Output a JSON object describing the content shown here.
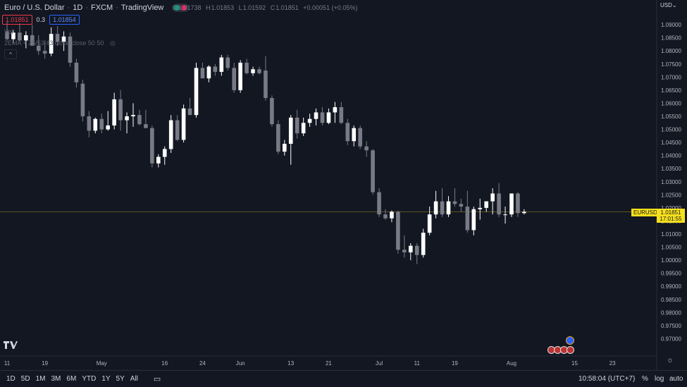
{
  "header": {
    "symbol_name": "Euro / U.S. Dollar",
    "timeframe": "1D",
    "exchange": "FXCM",
    "source": "TradingView"
  },
  "ohlc": {
    "o_label": "O",
    "o": "1.01738",
    "h_label": "H",
    "h": "1.01853",
    "l_label": "L",
    "l": "1.01592",
    "c_label": "C",
    "c": "1.01851",
    "change": "+0.00051 (+0.05%)"
  },
  "quote": {
    "sell": "1.01851",
    "spread": "0.3",
    "buy": "1.01854"
  },
  "indicators": {
    "volume": "Vol",
    "ema": "2EMA + 25/53 43 close close 50 50"
  },
  "currency": "USD",
  "price_tag": {
    "symbol": "EURUSD",
    "price": "1.01851",
    "countdown": "17:01:55"
  },
  "toolbar": {
    "timeframes": [
      "1D",
      "5D",
      "1M",
      "3M",
      "6M",
      "YTD",
      "1Y",
      "5Y",
      "All"
    ],
    "clock": "10:58:04 (UTC+7)",
    "percent": "%",
    "log": "log",
    "auto": "auto"
  },
  "colors": {
    "background": "#131722",
    "up": "#ffffff",
    "down": "#787b86",
    "price_line": "#f7e01c"
  },
  "chart_data": {
    "type": "candlestick",
    "ylim": [
      0.965,
      1.093
    ],
    "y_ticks": [
      1.09,
      1.085,
      1.08,
      1.075,
      1.07,
      1.065,
      1.06,
      1.055,
      1.05,
      1.045,
      1.04,
      1.035,
      1.03,
      1.025,
      1.02,
      1.015,
      1.01,
      1.005,
      1.0,
      0.995,
      0.99,
      0.985,
      0.98,
      0.975,
      0.97
    ],
    "y_tick_labels": [
      "1.09000",
      "1.08500",
      "1.08000",
      "1.07500",
      "1.07000",
      "1.06500",
      "1.06000",
      "1.05500",
      "1.05000",
      "1.04500",
      "1.04000",
      "1.03500",
      "1.03000",
      "1.02500",
      "1.02000",
      "1.01500",
      "1.01000",
      "1.00500",
      "1.00000",
      "0.99500",
      "0.99000",
      "0.98500",
      "0.98000",
      "0.97500",
      "0.97000"
    ],
    "x_tick_labels": [
      {
        "label": "11",
        "bar": 0
      },
      {
        "label": "19",
        "bar": 6
      },
      {
        "label": "May",
        "bar": 15
      },
      {
        "label": "16",
        "bar": 25
      },
      {
        "label": "24",
        "bar": 31
      },
      {
        "label": "Jun",
        "bar": 37
      },
      {
        "label": "13",
        "bar": 45
      },
      {
        "label": "21",
        "bar": 51
      },
      {
        "label": "Jul",
        "bar": 59
      },
      {
        "label": "11",
        "bar": 65
      },
      {
        "label": "19",
        "bar": 71
      },
      {
        "label": "Aug",
        "bar": 80
      },
      {
        "label": "15",
        "bar": 90
      },
      {
        "label": "23",
        "bar": 96
      }
    ],
    "candles": [
      {
        "o": 1.0875,
        "h": 1.091,
        "l": 1.084,
        "c": 1.0845
      },
      {
        "o": 1.0845,
        "h": 1.088,
        "l": 1.083,
        "c": 1.087
      },
      {
        "o": 1.087,
        "h": 1.0905,
        "l": 1.0835,
        "c": 1.084
      },
      {
        "o": 1.084,
        "h": 1.0875,
        "l": 1.081,
        "c": 1.086
      },
      {
        "o": 1.086,
        "h": 1.09,
        "l": 1.0825,
        "c": 1.082
      },
      {
        "o": 1.082,
        "h": 1.086,
        "l": 1.0785,
        "c": 1.08
      },
      {
        "o": 1.08,
        "h": 1.084,
        "l": 1.077,
        "c": 1.079
      },
      {
        "o": 1.079,
        "h": 1.089,
        "l": 1.078,
        "c": 1.0865
      },
      {
        "o": 1.0865,
        "h": 1.0895,
        "l": 1.082,
        "c": 1.0835
      },
      {
        "o": 1.0835,
        "h": 1.0875,
        "l": 1.08,
        "c": 1.0855
      },
      {
        "o": 1.0855,
        "h": 1.087,
        "l": 1.074,
        "c": 1.0755
      },
      {
        "o": 1.0755,
        "h": 1.077,
        "l": 1.066,
        "c": 1.068
      },
      {
        "o": 1.0675,
        "h": 1.069,
        "l": 1.053,
        "c": 1.055
      },
      {
        "o": 1.055,
        "h": 1.057,
        "l": 1.047,
        "c": 1.0495
      },
      {
        "o": 1.0495,
        "h": 1.0545,
        "l": 1.0485,
        "c": 1.054
      },
      {
        "o": 1.054,
        "h": 1.056,
        "l": 1.0485,
        "c": 1.05
      },
      {
        "o": 1.05,
        "h": 1.057,
        "l": 1.0495,
        "c": 1.0515
      },
      {
        "o": 1.0515,
        "h": 1.064,
        "l": 1.05,
        "c": 1.0615
      },
      {
        "o": 1.0615,
        "h": 1.065,
        "l": 1.0495,
        "c": 1.0535
      },
      {
        "o": 1.0535,
        "h": 1.0565,
        "l": 1.0485,
        "c": 1.055
      },
      {
        "o": 1.055,
        "h": 1.06,
        "l": 1.051,
        "c": 1.0555
      },
      {
        "o": 1.0555,
        "h": 1.0575,
        "l": 1.0515,
        "c": 1.052
      },
      {
        "o": 1.052,
        "h": 1.0575,
        "l": 1.0505,
        "c": 1.0505
      },
      {
        "o": 1.0505,
        "h": 1.0515,
        "l": 1.0355,
        "c": 1.037
      },
      {
        "o": 1.037,
        "h": 1.0405,
        "l": 1.0355,
        "c": 1.0395
      },
      {
        "o": 1.0395,
        "h": 1.0435,
        "l": 1.0365,
        "c": 1.0425
      },
      {
        "o": 1.0425,
        "h": 1.0555,
        "l": 1.041,
        "c": 1.0535
      },
      {
        "o": 1.0535,
        "h": 1.0555,
        "l": 1.0455,
        "c": 1.046
      },
      {
        "o": 1.046,
        "h": 1.0595,
        "l": 1.045,
        "c": 1.058
      },
      {
        "o": 1.058,
        "h": 1.062,
        "l": 1.0555,
        "c": 1.0555
      },
      {
        "o": 1.0555,
        "h": 1.0755,
        "l": 1.0545,
        "c": 1.0735
      },
      {
        "o": 1.0735,
        "h": 1.0755,
        "l": 1.0695,
        "c": 1.0695
      },
      {
        "o": 1.0695,
        "h": 1.0745,
        "l": 1.068,
        "c": 1.074
      },
      {
        "o": 1.074,
        "h": 1.075,
        "l": 1.0705,
        "c": 1.072
      },
      {
        "o": 1.072,
        "h": 1.0785,
        "l": 1.0705,
        "c": 1.0775
      },
      {
        "o": 1.0775,
        "h": 1.0785,
        "l": 1.0725,
        "c": 1.0735
      },
      {
        "o": 1.0735,
        "h": 1.0755,
        "l": 1.064,
        "c": 1.065
      },
      {
        "o": 1.065,
        "h": 1.0765,
        "l": 1.064,
        "c": 1.0755
      },
      {
        "o": 1.0755,
        "h": 1.077,
        "l": 1.071,
        "c": 1.0715
      },
      {
        "o": 1.0715,
        "h": 1.074,
        "l": 1.0705,
        "c": 1.073
      },
      {
        "o": 1.073,
        "h": 1.074,
        "l": 1.071,
        "c": 1.0715
      },
      {
        "o": 1.0725,
        "h": 1.078,
        "l": 1.061,
        "c": 1.062
      },
      {
        "o": 1.062,
        "h": 1.063,
        "l": 1.051,
        "c": 1.052
      },
      {
        "o": 1.052,
        "h": 1.0535,
        "l": 1.0405,
        "c": 1.0415
      },
      {
        "o": 1.0415,
        "h": 1.046,
        "l": 1.04,
        "c": 1.0445
      },
      {
        "o": 1.0445,
        "h": 1.0555,
        "l": 1.0365,
        "c": 1.0545
      },
      {
        "o": 1.0545,
        "h": 1.0575,
        "l": 1.0465,
        "c": 1.0485
      },
      {
        "o": 1.0485,
        "h": 1.0545,
        "l": 1.0475,
        "c": 1.0525
      },
      {
        "o": 1.0525,
        "h": 1.056,
        "l": 1.051,
        "c": 1.054
      },
      {
        "o": 1.054,
        "h": 1.058,
        "l": 1.0515,
        "c": 1.0565
      },
      {
        "o": 1.0565,
        "h": 1.0585,
        "l": 1.0515,
        "c": 1.0525
      },
      {
        "o": 1.0525,
        "h": 1.058,
        "l": 1.052,
        "c": 1.0565
      },
      {
        "o": 1.0565,
        "h": 1.0605,
        "l": 1.0525,
        "c": 1.0585
      },
      {
        "o": 1.0585,
        "h": 1.0605,
        "l": 1.052,
        "c": 1.0525
      },
      {
        "o": 1.0525,
        "h": 1.054,
        "l": 1.044,
        "c": 1.0455
      },
      {
        "o": 1.0455,
        "h": 1.0515,
        "l": 1.0435,
        "c": 1.0505
      },
      {
        "o": 1.0505,
        "h": 1.0515,
        "l": 1.0425,
        "c": 1.0435
      },
      {
        "o": 1.0435,
        "h": 1.0455,
        "l": 1.0395,
        "c": 1.042
      },
      {
        "o": 1.042,
        "h": 1.0425,
        "l": 1.025,
        "c": 1.026
      },
      {
        "o": 1.026,
        "h": 1.0275,
        "l": 1.0165,
        "c": 1.0175
      },
      {
        "o": 1.0175,
        "h": 1.0195,
        "l": 1.0155,
        "c": 1.016
      },
      {
        "o": 1.016,
        "h": 1.019,
        "l": 1.0145,
        "c": 1.0185
      },
      {
        "o": 1.0185,
        "h": 1.019,
        "l": 1.0025,
        "c": 1.004
      },
      {
        "o": 1.004,
        "h": 1.0095,
        "l": 1.001,
        "c": 1.003
      },
      {
        "o": 1.003,
        "h": 1.0065,
        "l": 1.0,
        "c": 1.0055
      },
      {
        "o": 1.0055,
        "h": 1.0065,
        "l": 0.9985,
        "c": 1.002
      },
      {
        "o": 1.002,
        "h": 1.012,
        "l": 1.001,
        "c": 1.0105
      },
      {
        "o": 1.0105,
        "h": 1.0205,
        "l": 1.0095,
        "c": 1.0175
      },
      {
        "o": 1.0175,
        "h": 1.0265,
        "l": 1.016,
        "c": 1.0225
      },
      {
        "o": 1.0225,
        "h": 1.0275,
        "l": 1.0165,
        "c": 1.0175
      },
      {
        "o": 1.0175,
        "h": 1.0245,
        "l": 1.0165,
        "c": 1.0225
      },
      {
        "o": 1.0225,
        "h": 1.0275,
        "l": 1.0205,
        "c": 1.0215
      },
      {
        "o": 1.0215,
        "h": 1.0235,
        "l": 1.0185,
        "c": 1.0205
      },
      {
        "o": 1.0205,
        "h": 1.0265,
        "l": 1.0105,
        "c": 1.0115
      },
      {
        "o": 1.0115,
        "h": 1.0205,
        "l": 1.0095,
        "c": 1.0195
      },
      {
        "o": 1.0195,
        "h": 1.0235,
        "l": 1.0155,
        "c": 1.02
      },
      {
        "o": 1.02,
        "h": 1.0225,
        "l": 1.0185,
        "c": 1.0225
      },
      {
        "o": 1.0225,
        "h": 1.0275,
        "l": 1.0175,
        "c": 1.0255
      },
      {
        "o": 1.0255,
        "h": 1.0295,
        "l": 1.0165,
        "c": 1.0175
      },
      {
        "o": 1.0175,
        "h": 1.0205,
        "l": 1.014,
        "c": 1.0175
      },
      {
        "o": 1.0175,
        "h": 1.0255,
        "l": 1.0165,
        "c": 1.0255
      },
      {
        "o": 1.0255,
        "h": 1.026,
        "l": 1.0165,
        "c": 1.018
      },
      {
        "o": 1.018,
        "h": 1.0195,
        "l": 1.0175,
        "c": 1.0185
      }
    ],
    "last_price": 1.01851,
    "grid": false
  }
}
